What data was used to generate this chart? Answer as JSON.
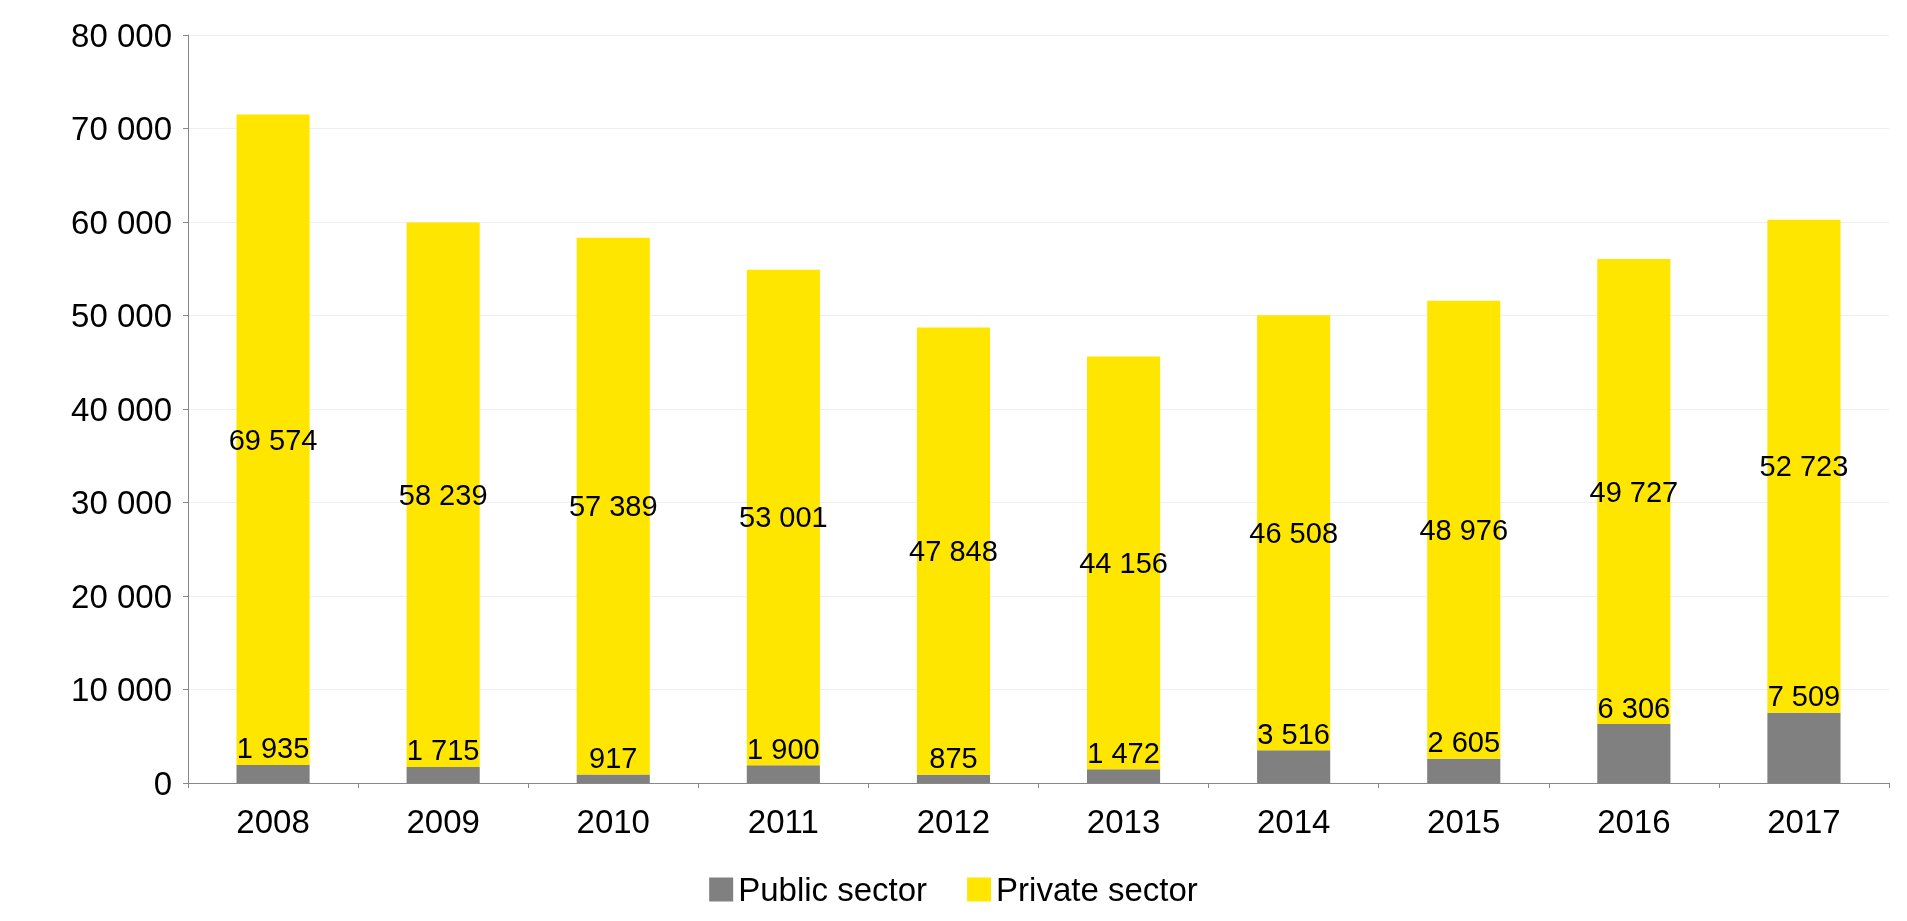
{
  "chart_data": {
    "type": "bar",
    "stacked": true,
    "categories": [
      "2008",
      "2009",
      "2010",
      "2011",
      "2012",
      "2013",
      "2014",
      "2015",
      "2016",
      "2017"
    ],
    "series": [
      {
        "name": "Public sector",
        "color": "#808080",
        "values": [
          1935,
          1715,
          917,
          1900,
          875,
          1472,
          3516,
          2605,
          6306,
          7509
        ],
        "value_labels": [
          "1 935",
          "1 715",
          "917",
          "1 900",
          "875",
          "1 472",
          "3 516",
          "2 605",
          "6 306",
          "7 509"
        ]
      },
      {
        "name": "Private sector",
        "color": "#ffe600",
        "values": [
          69574,
          58239,
          57389,
          53001,
          47848,
          44156,
          46508,
          48976,
          49727,
          52723
        ],
        "value_labels": [
          "69 574",
          "58 239",
          "57 389",
          "53 001",
          "47 848",
          "44 156",
          "46 508",
          "48 976",
          "49 727",
          "52 723"
        ]
      }
    ],
    "ylim": [
      0,
      80000
    ],
    "yticks": [
      {
        "value": 0,
        "label": "0"
      },
      {
        "value": 10000,
        "label": "10 000"
      },
      {
        "value": 20000,
        "label": "20 000"
      },
      {
        "value": 30000,
        "label": "30 000"
      },
      {
        "value": 40000,
        "label": "40 000"
      },
      {
        "value": 50000,
        "label": "50 000"
      },
      {
        "value": 60000,
        "label": "60 000"
      },
      {
        "value": 70000,
        "label": "70 000"
      },
      {
        "value": 80000,
        "label": "80 000"
      }
    ],
    "grid": "y",
    "legend": "bottom"
  }
}
